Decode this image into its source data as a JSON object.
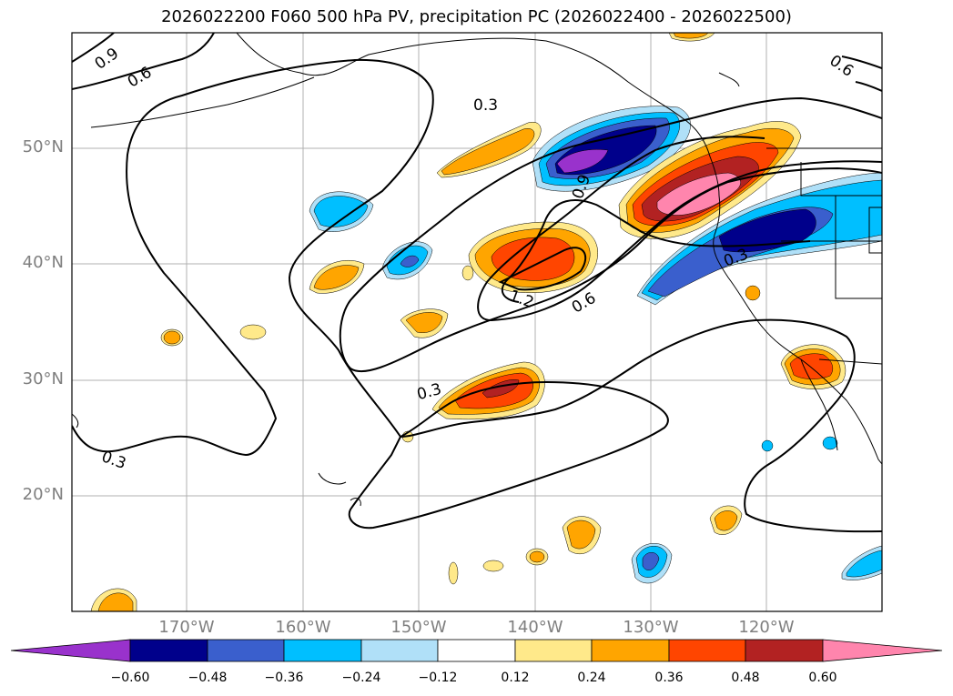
{
  "title": "2026022200 F060 500 hPa PV, precipitation PC (2026022400 - 2026022500)",
  "axes": {
    "lon_labels": [
      "170°W",
      "160°W",
      "150°W",
      "140°W",
      "130°W",
      "120°W"
    ],
    "lat_labels": [
      "50°N",
      "40°N",
      "30°N",
      "20°N"
    ]
  },
  "contour_labels": [
    "0.9",
    "0.6",
    "0.3",
    "0.9",
    "0.6",
    "0.3",
    "1.2",
    "0.6",
    "0.3",
    "0.3"
  ],
  "colorbar": {
    "ticks": [
      "−0.60",
      "−0.48",
      "−0.36",
      "−0.24",
      "−0.12",
      "0.12",
      "0.24",
      "0.36",
      "0.48",
      "0.60"
    ],
    "colors": [
      "#9932cc",
      "#00008b",
      "#3a5fcd",
      "#00bfff",
      "#b0e0f8",
      "#ffffff",
      "#ffe98a",
      "#ffa500",
      "#ff4500",
      "#b22222",
      "#ff85ad"
    ]
  },
  "palette": {
    "neg_deep": "#9932cc",
    "neg_dark": "#00008b",
    "neg_mid": "#3a5fcd",
    "neg_light": "#00bfff",
    "neg_pale": "#b0e0f8",
    "pos_pale": "#ffe98a",
    "pos_light": "#ffa500",
    "pos_mid": "#ff4500",
    "pos_dark": "#b22222",
    "pos_deep": "#ff85ad"
  }
}
